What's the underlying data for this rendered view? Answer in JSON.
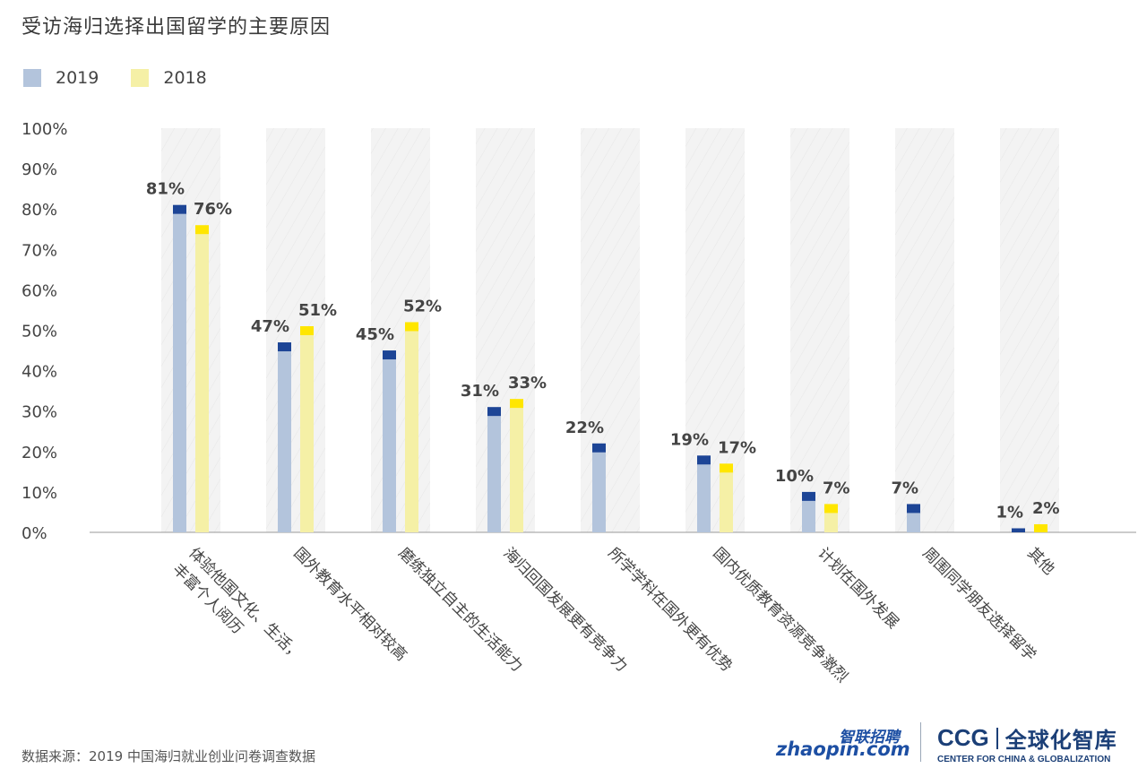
{
  "title": "受访海归选择出国留学的主要原因",
  "source": "数据来源：2019 中国海归就业创业问卷调查数据",
  "logos": {
    "zhaopin_cn": "智联招聘",
    "zhaopin_en": "zhaopin.com",
    "ccg_abbr": "CCG",
    "ccg_cn": "全球化智库",
    "ccg_en": "CENTER FOR CHINA & GLOBALIZATION"
  },
  "colors": {
    "bar_2019": "#b3c4dc",
    "cap_2019": "#1d4596",
    "bar_2018": "#f5f0a6",
    "cap_2018": "#ffe600",
    "value_label": "#444444",
    "axis_text": "#444444",
    "band": "#f2f2f2"
  },
  "chart_data": {
    "type": "bar",
    "categories": [
      [
        "体验他国文化、生活，",
        "丰富个人阅历"
      ],
      [
        "国外教育水平相对较高"
      ],
      [
        "磨练独立自主的生活能力"
      ],
      [
        "海归回国发展更有竞争力"
      ],
      [
        "所学学科在国外更有优势"
      ],
      [
        "国内优质教育资源竞争激烈"
      ],
      [
        "计划在国外发展"
      ],
      [
        "周围同学朋友选择留学"
      ],
      [
        "其他"
      ]
    ],
    "series": [
      {
        "name": "2019",
        "values": [
          81,
          47,
          45,
          31,
          22,
          19,
          10,
          7,
          1
        ],
        "labels": [
          "81%",
          "47%",
          "45%",
          "31%",
          "22%",
          "19%",
          "10%",
          "7%",
          "1%"
        ]
      },
      {
        "name": "2018",
        "values": [
          76,
          51,
          52,
          33,
          null,
          17,
          7,
          null,
          2
        ],
        "labels": [
          "76%",
          "51%",
          "52%",
          "33%",
          "",
          "17%",
          "7%",
          "",
          "2%"
        ]
      }
    ],
    "yticks": [
      "0%",
      "10%",
      "20%",
      "30%",
      "40%",
      "50%",
      "60%",
      "70%",
      "80%",
      "90%",
      "100%"
    ],
    "ylim": [
      0,
      100
    ],
    "legend_position": "top-left",
    "grid": false
  }
}
